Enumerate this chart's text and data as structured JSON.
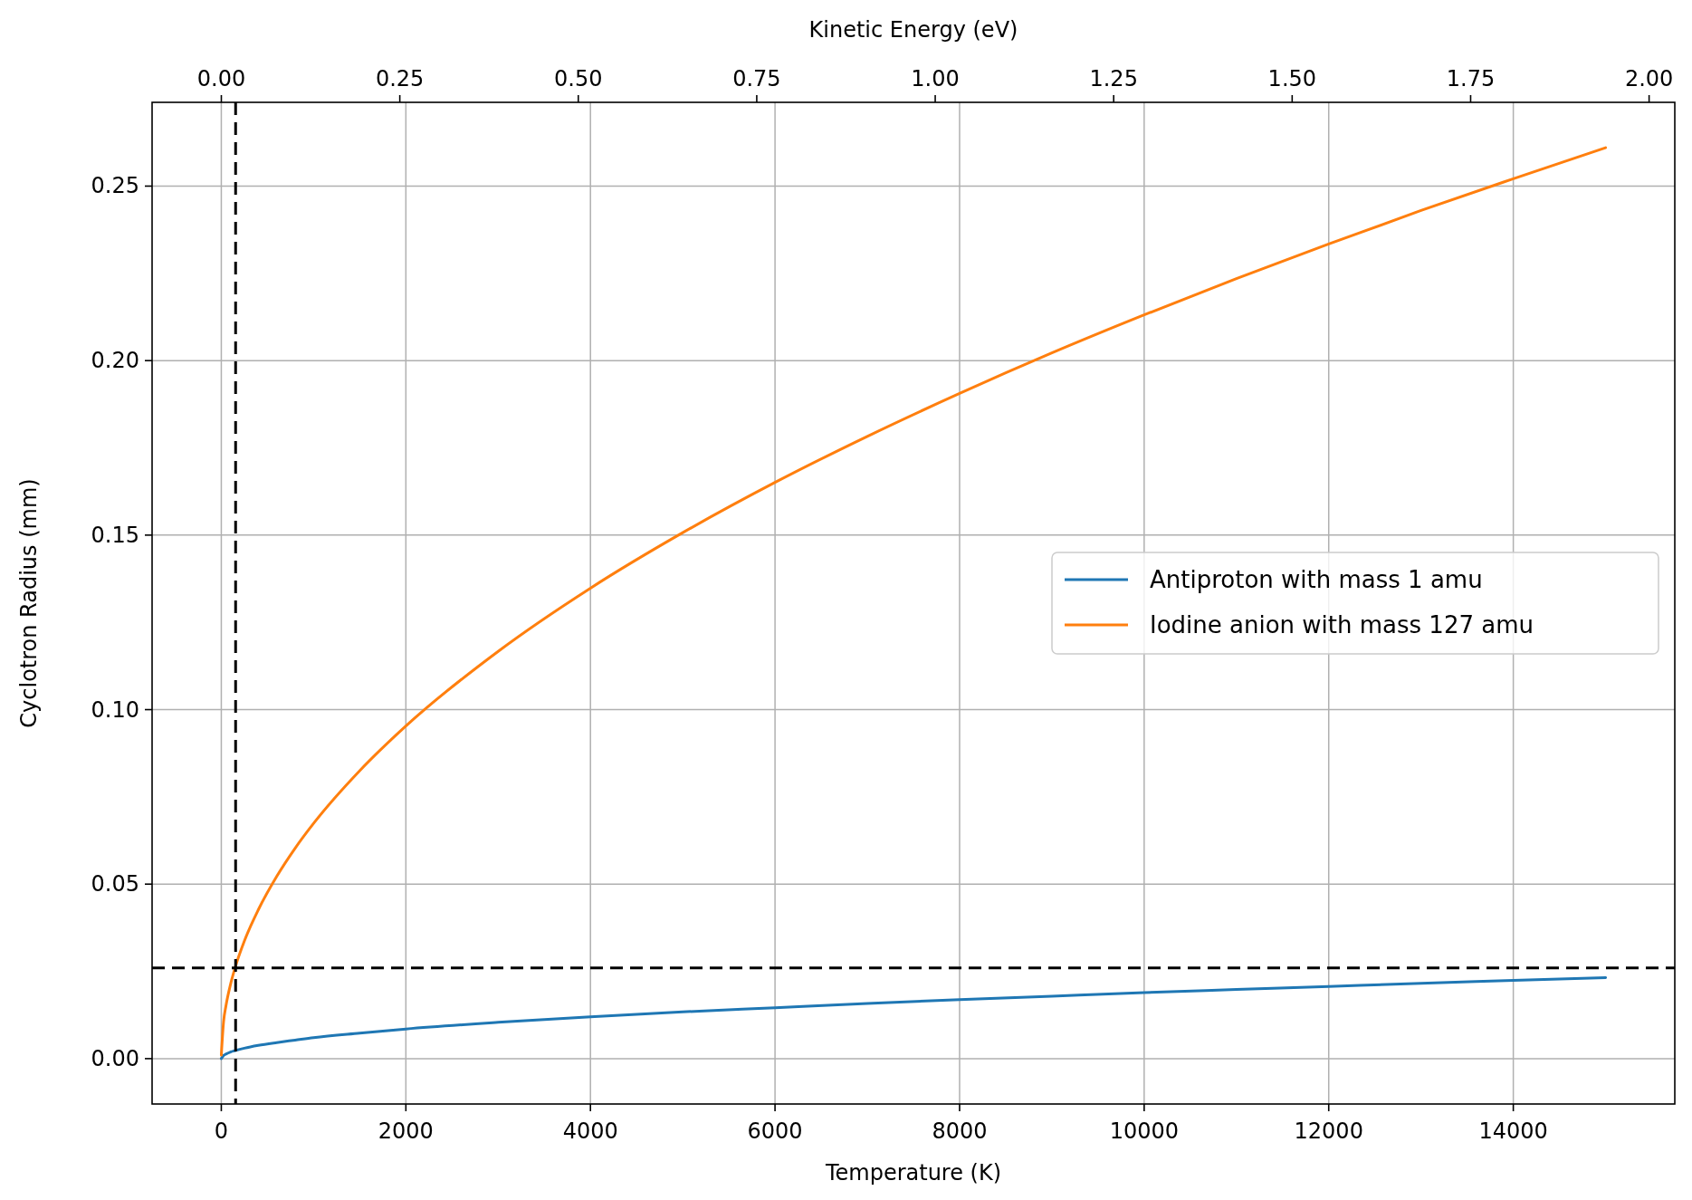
{
  "chart_data": {
    "type": "line",
    "xlabel": "Temperature (K)",
    "ylabel": "Cyclotron Radius (mm)",
    "x2label": "Kinetic Energy (eV)",
    "x": [
      0,
      25,
      50,
      100,
      150,
      250,
      400,
      600,
      800,
      1000,
      1500,
      2000,
      3000,
      4000,
      5000,
      6000,
      7000,
      8000,
      9000,
      10000,
      11000,
      12000,
      13000,
      14000,
      15000
    ],
    "series": [
      {
        "name": "Antiproton with mass 1 amu",
        "color": "#1f77b4",
        "values": [
          0,
          0.0009,
          0.0013,
          0.0019,
          0.0023,
          0.003,
          0.0038,
          0.0046,
          0.0053,
          0.006,
          0.0073,
          0.0085,
          0.0104,
          0.012,
          0.0134,
          0.0146,
          0.0158,
          0.0169,
          0.0179,
          0.0189,
          0.0198,
          0.0207,
          0.0216,
          0.0224,
          0.0232
        ]
      },
      {
        "name": "Iodine anion with mass 127 amu",
        "color": "#ff7f0e",
        "values": [
          0.001,
          0.0107,
          0.0151,
          0.0213,
          0.0261,
          0.0337,
          0.0426,
          0.0522,
          0.0603,
          0.0674,
          0.0825,
          0.0953,
          0.1167,
          0.1348,
          0.1507,
          0.1651,
          0.1783,
          0.1906,
          0.2022,
          0.2131,
          0.2235,
          0.2334,
          0.243,
          0.2521,
          0.261
        ]
      }
    ],
    "xlim": [
      -750,
      15750
    ],
    "xticks": [
      0,
      2000,
      4000,
      6000,
      8000,
      10000,
      12000,
      14000
    ],
    "ylim": [
      -0.013,
      0.274
    ],
    "yticks": [
      {
        "value": 0,
        "label": "0.00"
      },
      {
        "value": 0.05,
        "label": "0.05"
      },
      {
        "value": 0.1,
        "label": "0.10"
      },
      {
        "value": 0.15,
        "label": "0.15"
      },
      {
        "value": 0.2,
        "label": "0.20"
      },
      {
        "value": 0.25,
        "label": "0.25"
      }
    ],
    "x2lim": [
      -0.097,
      2.036
    ],
    "x2ticks": [
      {
        "value": 0,
        "label": "0.00"
      },
      {
        "value": 0.25,
        "label": "0.25"
      },
      {
        "value": 0.5,
        "label": "0.50"
      },
      {
        "value": 0.75,
        "label": "0.75"
      },
      {
        "value": 1,
        "label": "1.00"
      },
      {
        "value": 1.25,
        "label": "1.25"
      },
      {
        "value": 1.5,
        "label": "1.50"
      },
      {
        "value": 1.75,
        "label": "1.75"
      },
      {
        "value": 2,
        "label": "2.00"
      }
    ],
    "ref_lines": [
      {
        "axis": "y",
        "value": 0.026,
        "color": "#000000",
        "line_style": "dashed"
      },
      {
        "axis": "x",
        "value": 155,
        "color": "#000000",
        "line_style": "dashed"
      }
    ],
    "grid": true,
    "legend": "right",
    "line_style": "solid"
  }
}
